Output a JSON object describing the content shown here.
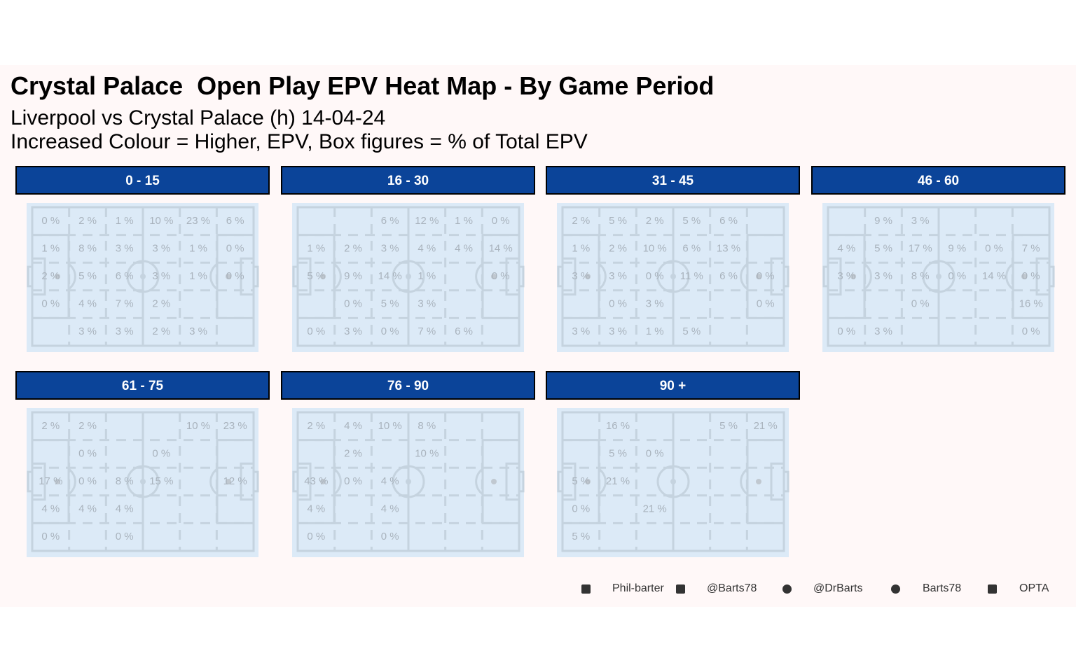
{
  "header": {
    "title": "Crystal Palace  Open Play EPV Heat Map - By Game Period",
    "subtitle_lines": [
      "Liverpool vs Crystal Palace (h) 14-04-24",
      "Increased Colour = Higher, EPV, Box figures = % of Total EPV"
    ]
  },
  "panels": [
    {
      "label": "0 - 15",
      "cells": [
        [
          "0 %",
          "2 %",
          "1 %",
          "10 %",
          "23 %",
          "6 %"
        ],
        [
          "1 %",
          "8 %",
          "3 %",
          "3 %",
          "1 %",
          "0 %"
        ],
        [
          "2 %",
          "5 %",
          "6 %",
          "3 %",
          "1 %",
          "0 %"
        ],
        [
          "0 %",
          "4 %",
          "7 %",
          "2 %",
          null,
          null
        ],
        [
          null,
          "3 %",
          "3 %",
          "2 %",
          "3 %",
          null
        ]
      ]
    },
    {
      "label": "16 - 30",
      "cells": [
        [
          null,
          null,
          "6 %",
          "12 %",
          "1 %",
          "0 %"
        ],
        [
          "1 %",
          "2 %",
          "3 %",
          "4 %",
          "4 %",
          "14 %"
        ],
        [
          "5 %",
          "9 %",
          "14 %",
          "1 %",
          null,
          "0 %"
        ],
        [
          null,
          "0 %",
          "5 %",
          "3 %",
          null,
          null
        ],
        [
          "0 %",
          "3 %",
          "0 %",
          "7 %",
          "6 %",
          null
        ]
      ]
    },
    {
      "label": "31 - 45",
      "cells": [
        [
          "2 %",
          "5 %",
          "2 %",
          "5 %",
          "6 %",
          null
        ],
        [
          "1 %",
          "2 %",
          "10 %",
          "6 %",
          "13 %",
          null
        ],
        [
          "3 %",
          "3 %",
          "0 %",
          "11 %",
          "6 %",
          "0 %"
        ],
        [
          null,
          "0 %",
          "3 %",
          null,
          null,
          "0 %"
        ],
        [
          "3 %",
          "3 %",
          "1 %",
          "5 %",
          null,
          null
        ]
      ]
    },
    {
      "label": "46 - 60",
      "cells": [
        [
          null,
          "9 %",
          "3 %",
          null,
          null,
          null
        ],
        [
          "4 %",
          "5 %",
          "17 %",
          "9 %",
          "0 %",
          "7 %"
        ],
        [
          "3 %",
          "3 %",
          "8 %",
          "0 %",
          "14 %",
          "0 %"
        ],
        [
          null,
          null,
          "0 %",
          null,
          null,
          "16 %"
        ],
        [
          "0 %",
          "3 %",
          null,
          null,
          null,
          "0 %"
        ]
      ]
    },
    {
      "label": "61 - 75",
      "cells": [
        [
          "2 %",
          "2 %",
          null,
          null,
          "10 %",
          "23 %"
        ],
        [
          null,
          "0 %",
          null,
          "0 %",
          null,
          null
        ],
        [
          "17 %",
          "0 %",
          "8 %",
          "15 %",
          null,
          "12 %"
        ],
        [
          "4 %",
          "4 %",
          "4 %",
          null,
          null,
          null
        ],
        [
          "0 %",
          null,
          "0 %",
          null,
          null,
          null
        ]
      ]
    },
    {
      "label": "76 - 90",
      "cells": [
        [
          "2 %",
          "4 %",
          "10 %",
          "8 %",
          null,
          null
        ],
        [
          null,
          "2 %",
          null,
          "10 %",
          null,
          null
        ],
        [
          "43 %",
          "0 %",
          "4 %",
          null,
          null,
          null
        ],
        [
          "4 %",
          null,
          "4 %",
          null,
          null,
          null
        ],
        [
          "0 %",
          null,
          "0 %",
          null,
          null,
          null
        ]
      ]
    },
    {
      "label": "90 +",
      "cells": [
        [
          null,
          "16 %",
          null,
          null,
          "5 %",
          "21 %"
        ],
        [
          null,
          "5 %",
          "0 %",
          null,
          null,
          null
        ],
        [
          "5 %",
          "21 %",
          null,
          null,
          null,
          null
        ],
        [
          "0 %",
          null,
          "21 %",
          null,
          null,
          null
        ],
        [
          "5 %",
          null,
          null,
          null,
          null,
          null
        ]
      ]
    }
  ],
  "footer": {
    "linkedin": "Phil-barter",
    "x": "@Barts78",
    "mastodon": "@DrBarts",
    "github": "Barts78",
    "source": "OPTA"
  }
}
